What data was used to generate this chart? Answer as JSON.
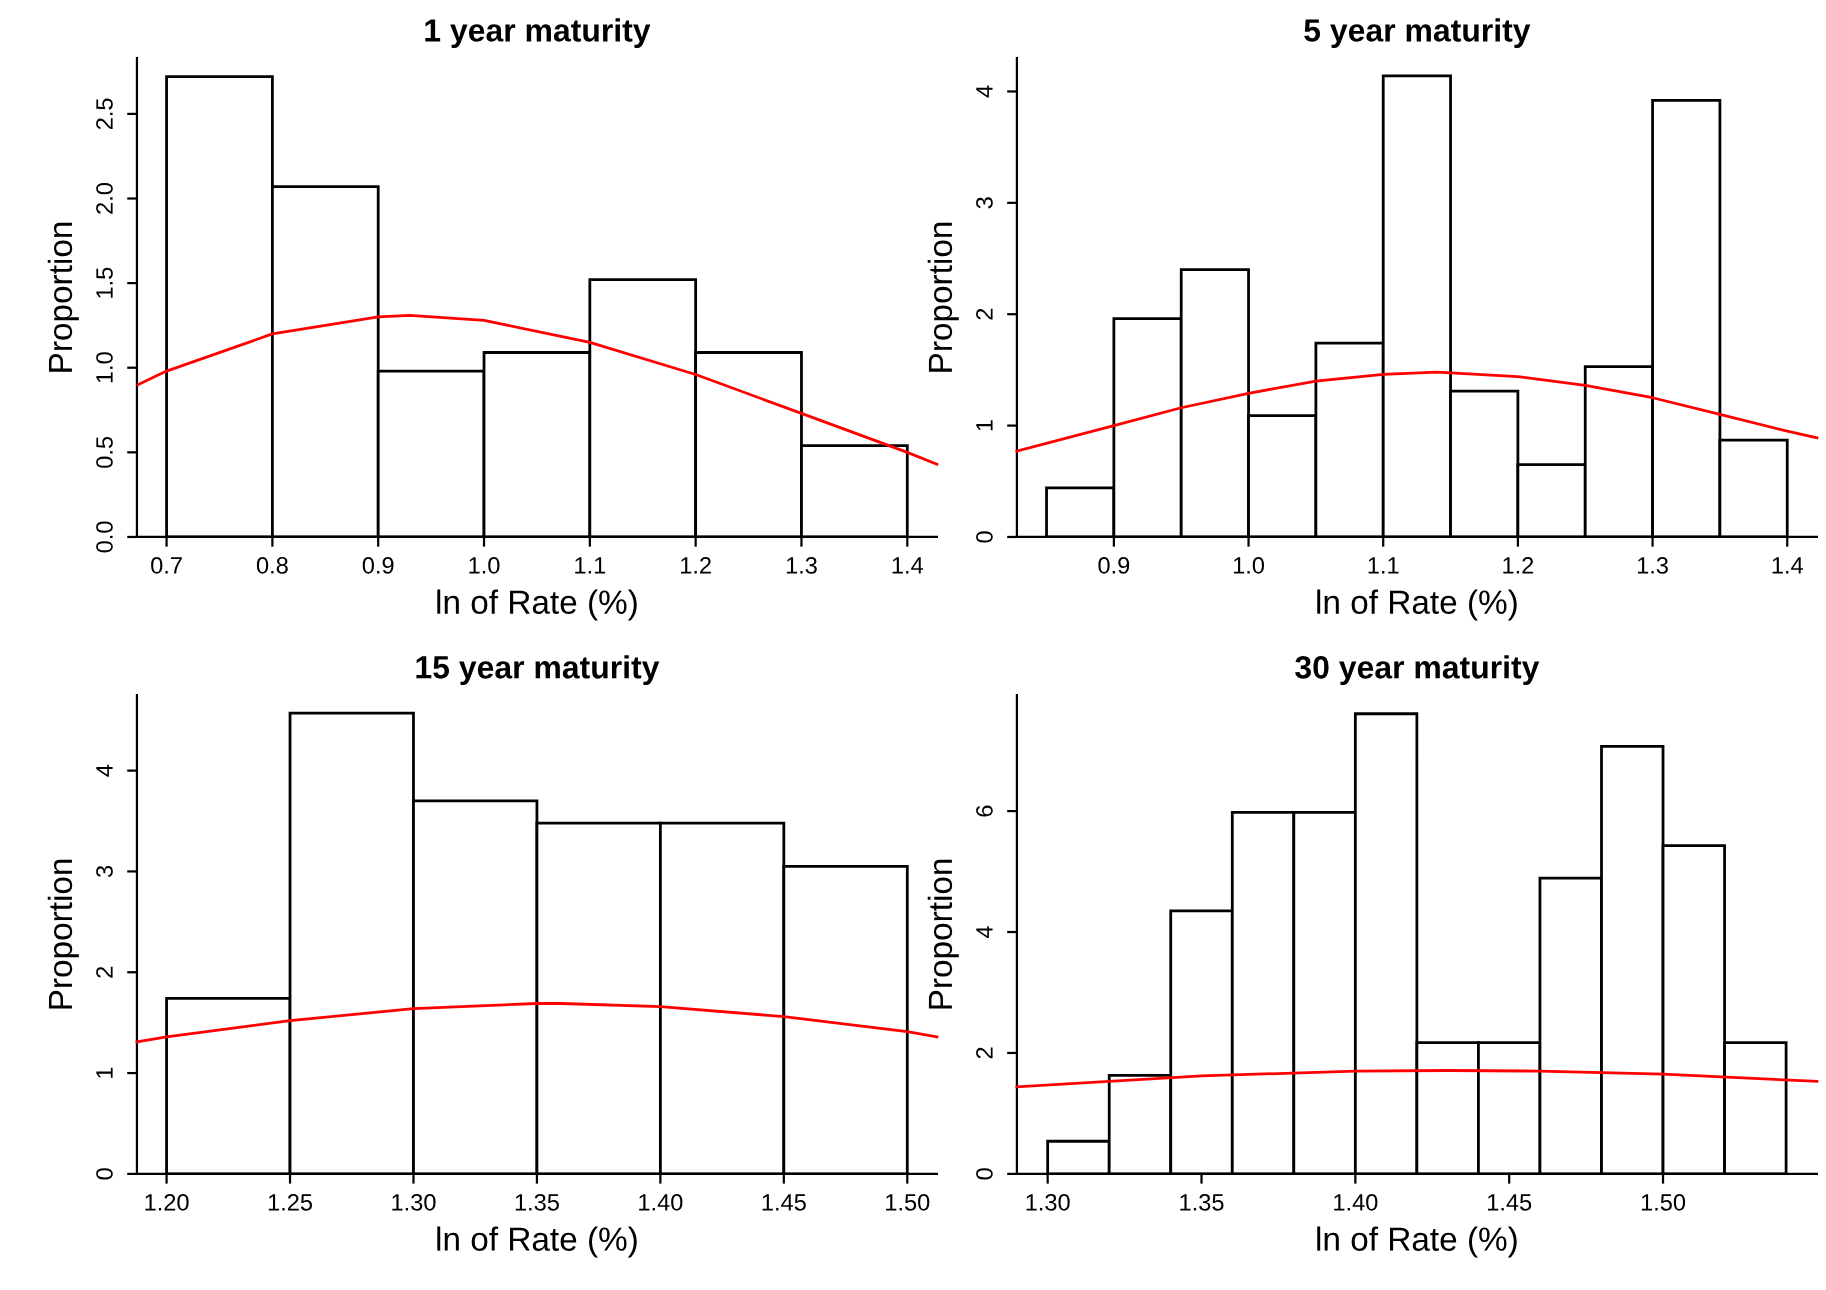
{
  "chart_data": [
    {
      "type": "histogram",
      "title": "1 year maturity",
      "xlabel": "ln of Rate (%)",
      "ylabel": "Proportion",
      "grid": false,
      "legend": false,
      "series": [
        {
          "type": "histogram",
          "color": "#ffffff",
          "bins": [
            0.7,
            0.8,
            0.9,
            1.0,
            1.1,
            1.2,
            1.3,
            1.4
          ],
          "values": [
            2.72,
            2.07,
            0.98,
            1.09,
            1.52,
            1.09,
            0.54
          ]
        },
        {
          "type": "line",
          "color": "#ff0000",
          "x": [
            0.673,
            0.7,
            0.8,
            0.9,
            0.93,
            1.0,
            1.1,
            1.2,
            1.3,
            1.4,
            1.428
          ],
          "values": [
            0.9,
            0.98,
            1.2,
            1.3,
            1.31,
            1.28,
            1.15,
            0.96,
            0.73,
            0.5,
            0.43
          ]
        }
      ],
      "xlim": [
        0.672,
        1.428
      ],
      "ylim": [
        0,
        2.83
      ],
      "xticks": [
        {
          "value": 0.7,
          "label": "0.7"
        },
        {
          "value": 0.8,
          "label": "0.8"
        },
        {
          "value": 0.9,
          "label": "0.9"
        },
        {
          "value": 1.0,
          "label": "1.0"
        },
        {
          "value": 1.1,
          "label": "1.1"
        },
        {
          "value": 1.2,
          "label": "1.2"
        },
        {
          "value": 1.3,
          "label": "1.3"
        },
        {
          "value": 1.4,
          "label": "1.4"
        }
      ],
      "yticks": [
        {
          "value": 0,
          "label": "0.0"
        },
        {
          "value": 0.5,
          "label": "0.5"
        },
        {
          "value": 1.0,
          "label": "1.0"
        },
        {
          "value": 1.5,
          "label": "1.5"
        },
        {
          "value": 2.0,
          "label": "2.0"
        },
        {
          "value": 2.5,
          "label": "2.5"
        }
      ]
    },
    {
      "type": "histogram",
      "title": "5 year maturity",
      "xlabel": "ln of Rate (%)",
      "ylabel": "Proportion",
      "grid": false,
      "legend": false,
      "series": [
        {
          "type": "histogram",
          "color": "#ffffff",
          "bins": [
            0.85,
            0.9,
            0.95,
            1.0,
            1.05,
            1.1,
            1.15,
            1.2,
            1.25,
            1.3,
            1.35,
            1.4
          ],
          "values": [
            0.44,
            1.96,
            2.4,
            1.09,
            1.74,
            4.14,
            1.31,
            0.65,
            1.53,
            3.92,
            0.87
          ]
        },
        {
          "type": "line",
          "color": "#ff0000",
          "x": [
            0.828,
            0.9,
            0.95,
            1.0,
            1.05,
            1.1,
            1.14,
            1.2,
            1.25,
            1.3,
            1.35,
            1.4,
            1.422
          ],
          "values": [
            0.77,
            1.0,
            1.16,
            1.29,
            1.4,
            1.46,
            1.48,
            1.44,
            1.36,
            1.25,
            1.1,
            0.95,
            0.89
          ]
        }
      ],
      "xlim": [
        0.828,
        1.422
      ],
      "ylim": [
        0,
        4.3
      ],
      "xticks": [
        {
          "value": 0.9,
          "label": "0.9"
        },
        {
          "value": 1.0,
          "label": "1.0"
        },
        {
          "value": 1.1,
          "label": "1.1"
        },
        {
          "value": 1.2,
          "label": "1.2"
        },
        {
          "value": 1.3,
          "label": "1.3"
        },
        {
          "value": 1.4,
          "label": "1.4"
        }
      ],
      "yticks": [
        0,
        1,
        2,
        3,
        4
      ]
    },
    {
      "type": "histogram",
      "title": "15 year maturity",
      "xlabel": "ln of Rate (%)",
      "ylabel": "Proportion",
      "grid": false,
      "legend": false,
      "series": [
        {
          "type": "histogram",
          "color": "#ffffff",
          "bins": [
            1.2,
            1.25,
            1.3,
            1.35,
            1.4,
            1.45,
            1.5
          ],
          "values": [
            1.74,
            4.57,
            3.7,
            3.48,
            3.48,
            3.05
          ]
        },
        {
          "type": "line",
          "color": "#ff0000",
          "x": [
            1.188,
            1.2,
            1.25,
            1.3,
            1.35,
            1.36,
            1.4,
            1.45,
            1.5,
            1.512
          ],
          "values": [
            1.31,
            1.36,
            1.52,
            1.64,
            1.69,
            1.69,
            1.66,
            1.56,
            1.41,
            1.36
          ]
        }
      ],
      "xlim": [
        1.188,
        1.512
      ],
      "ylim": [
        0,
        4.75
      ],
      "xticks": [
        {
          "value": 1.2,
          "label": "1.20"
        },
        {
          "value": 1.25,
          "label": "1.25"
        },
        {
          "value": 1.3,
          "label": "1.30"
        },
        {
          "value": 1.35,
          "label": "1.35"
        },
        {
          "value": 1.4,
          "label": "1.40"
        },
        {
          "value": 1.45,
          "label": "1.45"
        },
        {
          "value": 1.5,
          "label": "1.50"
        }
      ],
      "yticks": [
        0,
        1,
        2,
        3,
        4
      ]
    },
    {
      "type": "histogram",
      "title": "30 year maturity",
      "xlabel": "ln of Rate (%)",
      "ylabel": "Proportion",
      "grid": false,
      "legend": false,
      "series": [
        {
          "type": "histogram",
          "color": "#ffffff",
          "bins": [
            1.3,
            1.32,
            1.34,
            1.36,
            1.38,
            1.4,
            1.42,
            1.44,
            1.46,
            1.48,
            1.5,
            1.52,
            1.54
          ],
          "values": [
            0.54,
            1.63,
            4.35,
            5.98,
            5.98,
            7.61,
            2.17,
            2.17,
            4.89,
            7.07,
            5.43,
            2.17
          ]
        },
        {
          "type": "line",
          "color": "#ff0000",
          "x": [
            1.29,
            1.35,
            1.4,
            1.43,
            1.46,
            1.5,
            1.55
          ],
          "values": [
            1.44,
            1.62,
            1.7,
            1.71,
            1.7,
            1.65,
            1.53
          ]
        }
      ],
      "xlim": [
        1.29,
        1.55
      ],
      "ylim": [
        0,
        7.92
      ],
      "xticks": [
        {
          "value": 1.3,
          "label": "1.30"
        },
        {
          "value": 1.35,
          "label": "1.35"
        },
        {
          "value": 1.4,
          "label": "1.40"
        },
        {
          "value": 1.45,
          "label": "1.45"
        },
        {
          "value": 1.5,
          "label": "1.50"
        }
      ],
      "yticks": [
        0,
        2,
        4,
        6
      ]
    }
  ]
}
